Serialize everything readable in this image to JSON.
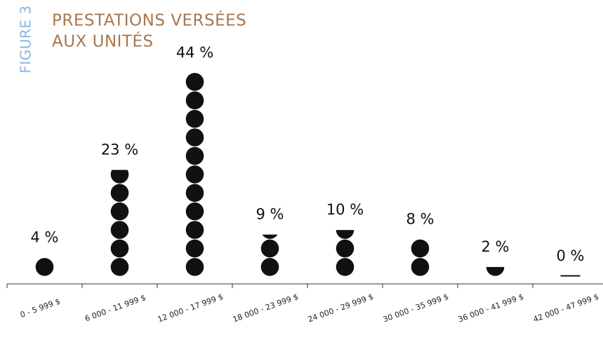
{
  "chart_data": {
    "type": "dot-stack",
    "figure_label": "FIGURE 3",
    "title": [
      "PRESTATIONS VERSÉES",
      "AUX UNITÉS"
    ],
    "categories": [
      "0 - 5 999 $",
      "6 000 - 11 999 $",
      "12 000 - 17 999 $",
      "18 000 - 23 999 $",
      "24 000 - 29 999 $",
      "30 000 - 35 999 $",
      "36 000 - 41 999 $",
      "42 000 - 47 999 $"
    ],
    "values": [
      4,
      23,
      44,
      9,
      10,
      8,
      2,
      0
    ],
    "value_labels": [
      "4 %",
      "23 %",
      "44 %",
      "9 %",
      "10 %",
      "8 %",
      "2 %",
      "0 %"
    ],
    "ylim": [
      0,
      44
    ],
    "color": "#111111"
  }
}
